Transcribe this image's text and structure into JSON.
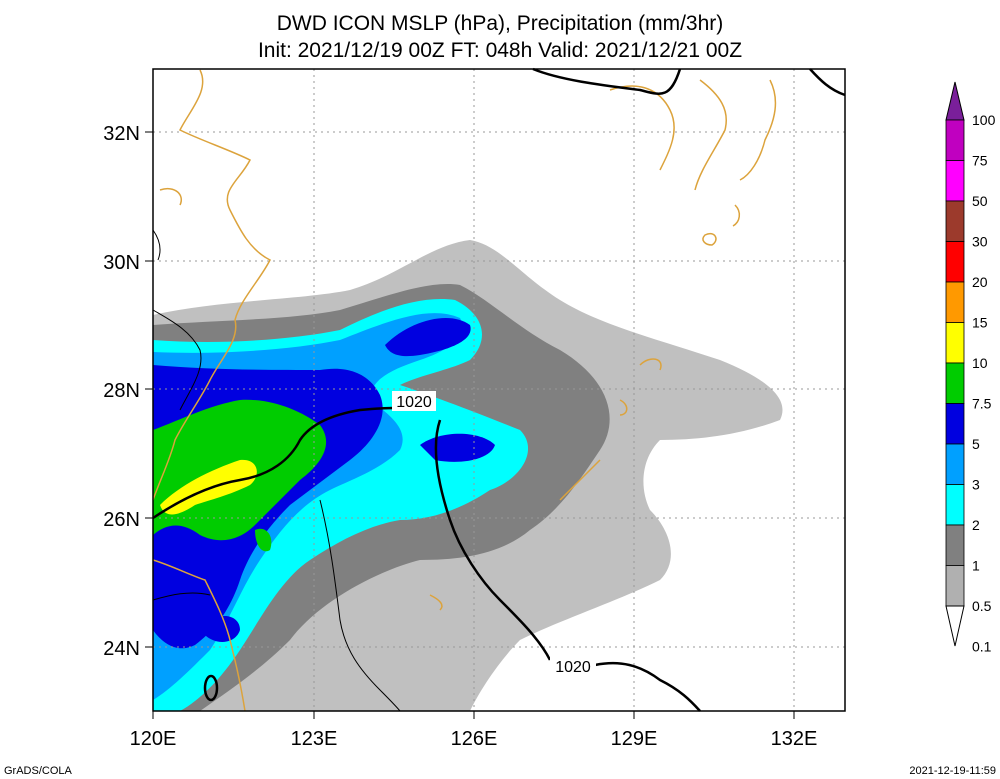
{
  "title": {
    "line1": "DWD ICON MSLP (hPa), Precipitation (mm/3hr)",
    "line2": "Init: 2021/12/19 00Z  FT: 048h  Valid: 2021/12/21 00Z"
  },
  "axes": {
    "lon_labels": [
      "120E",
      "123E",
      "126E",
      "129E",
      "132E"
    ],
    "lat_labels": [
      "32N",
      "30N",
      "28N",
      "26N",
      "24N"
    ]
  },
  "isobar_labels": [
    "1020",
    "1020"
  ],
  "colorbar": {
    "labels": [
      "100",
      "75",
      "50",
      "30",
      "20",
      "15",
      "10",
      "7.5",
      "5",
      "3",
      "2",
      "1",
      "0.5",
      "0.1"
    ],
    "colors": [
      "#7a1f9a",
      "#c000c0",
      "#ff00ff",
      "#9c3a2c",
      "#ff0000",
      "#ff9900",
      "#ffff00",
      "#00cc00",
      "#0000e0",
      "#00a0ff",
      "#00ffff",
      "#808080",
      "#b0b0b0",
      "#ffffff"
    ]
  },
  "colors": {
    "coast": "#dca33c",
    "isobar": "#000000",
    "grid": "#999999"
  },
  "footer": {
    "left": "GrADS/COLA",
    "right": "2021-12-19-11:59"
  }
}
